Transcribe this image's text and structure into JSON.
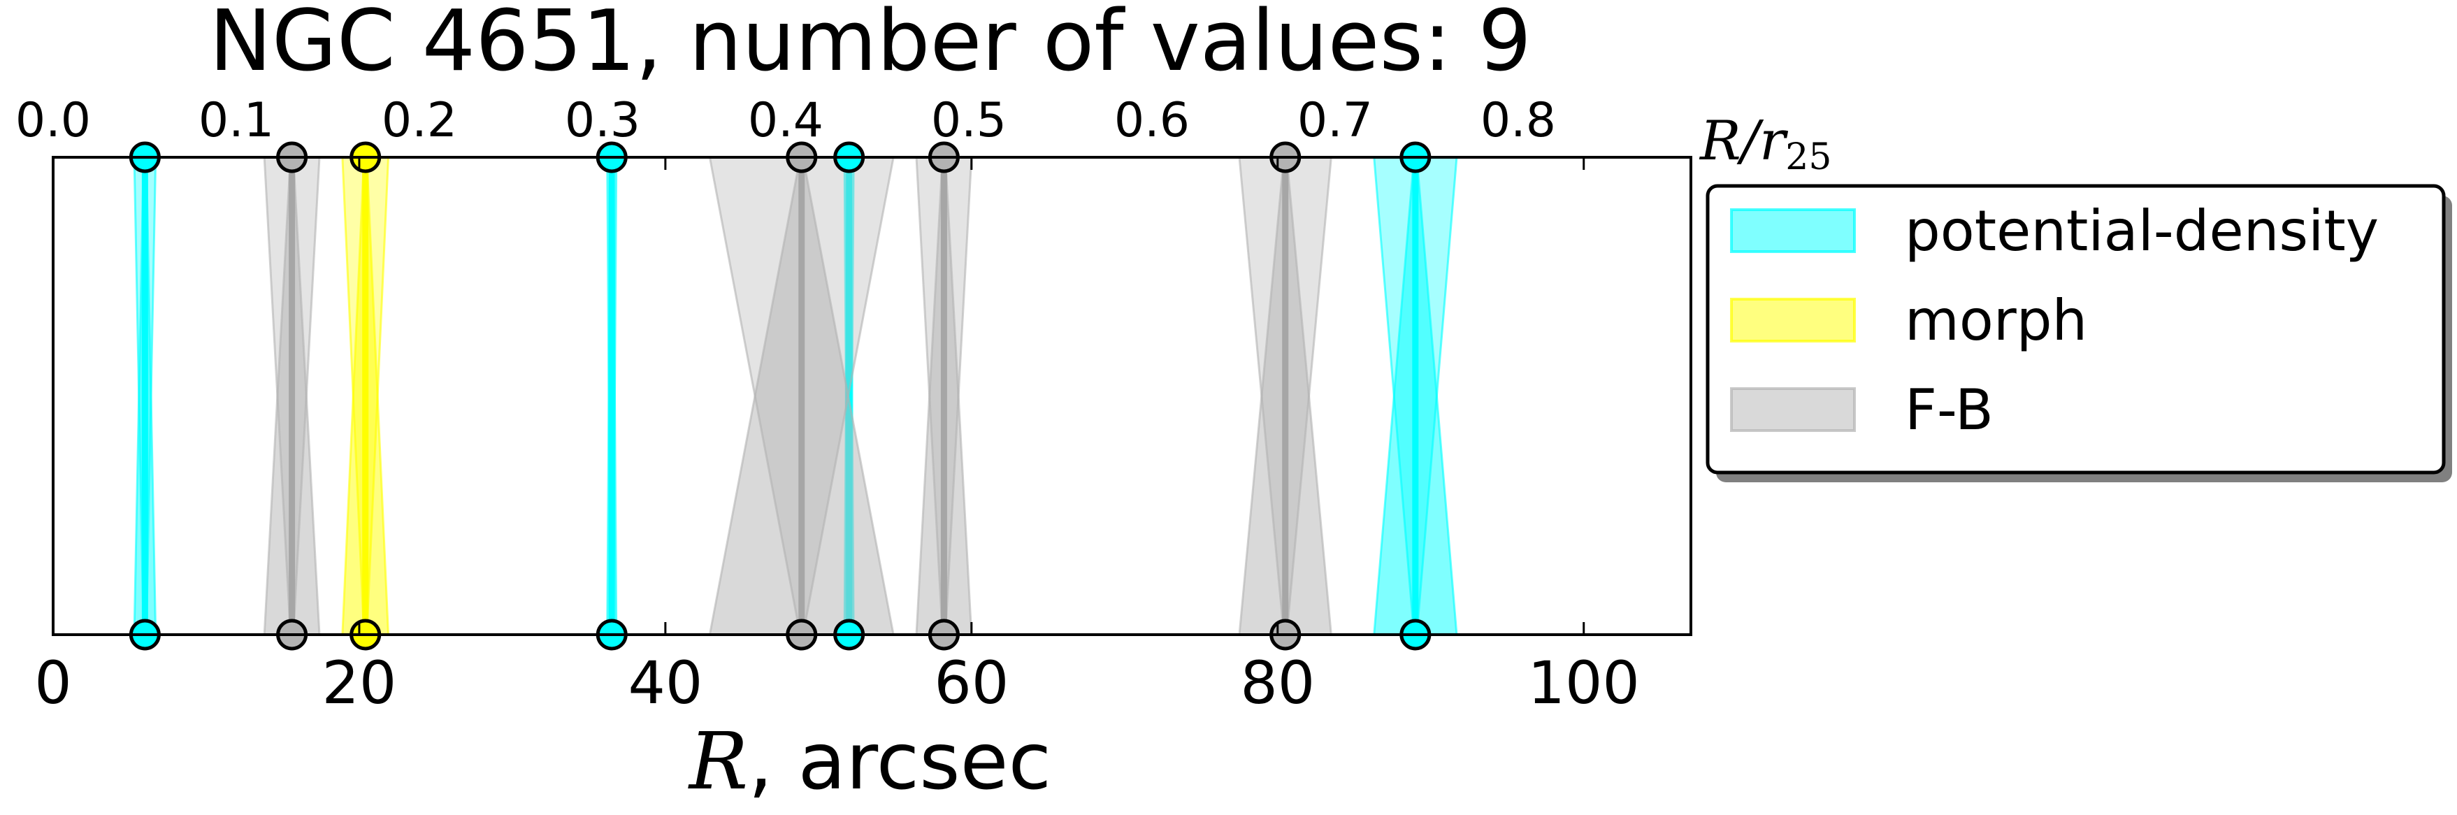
{
  "chart_data": {
    "type": "band",
    "title": "NGC 4651, number of values: 9",
    "xlabel_symbol": "R",
    "xlabel_unit": ", arcsec",
    "x2label_num": "R/r",
    "x2label_sub": "25",
    "xlim": [
      0,
      107
    ],
    "xticks": [
      {
        "value": 0,
        "label": "0"
      },
      {
        "value": 20,
        "label": "20"
      },
      {
        "value": 40,
        "label": "40"
      },
      {
        "value": 60,
        "label": "60"
      },
      {
        "value": 80,
        "label": "80"
      },
      {
        "value": 100,
        "label": "100"
      }
    ],
    "x2lim": [
      0,
      0.8943
    ],
    "x2ticks": [
      {
        "value": 0.0,
        "label": "0.0"
      },
      {
        "value": 0.1,
        "label": "0.1"
      },
      {
        "value": 0.2,
        "label": "0.2"
      },
      {
        "value": 0.3,
        "label": "0.3"
      },
      {
        "value": 0.4,
        "label": "0.4"
      },
      {
        "value": 0.5,
        "label": "0.5"
      },
      {
        "value": 0.6,
        "label": "0.6"
      },
      {
        "value": 0.7,
        "label": "0.7"
      },
      {
        "value": 0.8,
        "label": "0.8"
      }
    ],
    "legend_position": "outside-right-top",
    "series": [
      {
        "name": "potential-density",
        "color": "#00ffff",
        "points": [
          {
            "r": 6.0,
            "err": 0.7
          },
          {
            "r": 36.5,
            "err": 0.3
          },
          {
            "r": 52.0,
            "err": 0.3
          },
          {
            "r": 89.0,
            "err": 2.7
          }
        ]
      },
      {
        "name": "morph",
        "color": "#ffff00",
        "points": [
          {
            "r": 20.4,
            "err": 1.5
          }
        ]
      },
      {
        "name": "F-B",
        "color": "#b3b3b3",
        "points": [
          {
            "r": 15.6,
            "err": 1.8
          },
          {
            "r": 48.9,
            "err": 6.0
          },
          {
            "r": 58.2,
            "err": 1.8
          },
          {
            "r": 80.5,
            "err": 3.0
          }
        ]
      }
    ]
  }
}
